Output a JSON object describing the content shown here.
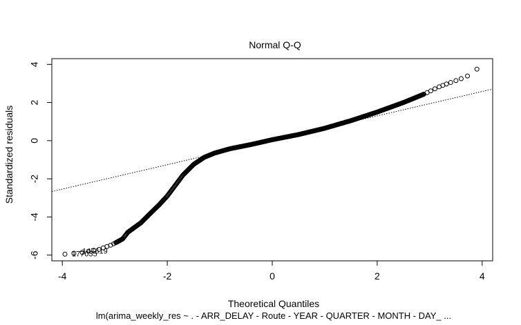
{
  "chart_data": {
    "type": "scatter",
    "title": "Normal Q-Q",
    "xlabel": "Theoretical Quantiles",
    "ylabel": "Standardized residuals",
    "caption": "lm(arima_weekly_res ~ . - ARR_DELAY - Route - YEAR - QUARTER - MONTH - DAY_ ...",
    "xlim": [
      -4.2,
      4.2
    ],
    "ylim": [
      -6.3,
      4.3
    ],
    "xticks": [
      "-4",
      "-2",
      "0",
      "2",
      "4"
    ],
    "yticks": [
      "-6",
      "-4",
      "-2",
      "0",
      "2",
      "4"
    ],
    "grid": false,
    "reference_line": {
      "intercept": 0.02,
      "slope": 0.64
    },
    "point_labels": [
      {
        "text": "177035",
        "x": -3.82,
        "y": -5.92
      },
      {
        "text": "147619",
        "x": -3.62,
        "y": -5.78
      }
    ],
    "curve": [
      {
        "x": -3.95,
        "y": -5.95
      },
      {
        "x": -3.6,
        "y": -5.85
      },
      {
        "x": -3.3,
        "y": -5.7
      },
      {
        "x": -3.05,
        "y": -5.45
      },
      {
        "x": -2.85,
        "y": -5.15
      },
      {
        "x": -2.75,
        "y": -4.8
      },
      {
        "x": -2.5,
        "y": -4.3
      },
      {
        "x": -2.3,
        "y": -3.75
      },
      {
        "x": -2.15,
        "y": -3.35
      },
      {
        "x": -2.0,
        "y": -2.9
      },
      {
        "x": -1.85,
        "y": -2.35
      },
      {
        "x": -1.7,
        "y": -1.8
      },
      {
        "x": -1.5,
        "y": -1.25
      },
      {
        "x": -1.3,
        "y": -0.88
      },
      {
        "x": -1.1,
        "y": -0.65
      },
      {
        "x": -0.8,
        "y": -0.42
      },
      {
        "x": -0.4,
        "y": -0.2
      },
      {
        "x": 0.0,
        "y": 0.05
      },
      {
        "x": 0.5,
        "y": 0.32
      },
      {
        "x": 1.0,
        "y": 0.65
      },
      {
        "x": 1.5,
        "y": 1.05
      },
      {
        "x": 2.0,
        "y": 1.5
      },
      {
        "x": 2.5,
        "y": 2.0
      },
      {
        "x": 2.9,
        "y": 2.45
      },
      {
        "x": 3.2,
        "y": 2.85
      },
      {
        "x": 3.5,
        "y": 3.15
      },
      {
        "x": 3.7,
        "y": 3.35
      },
      {
        "x": 3.9,
        "y": 3.75
      }
    ],
    "colors": {
      "points": "#000000",
      "line": "#000000",
      "background": "#ffffff"
    }
  }
}
